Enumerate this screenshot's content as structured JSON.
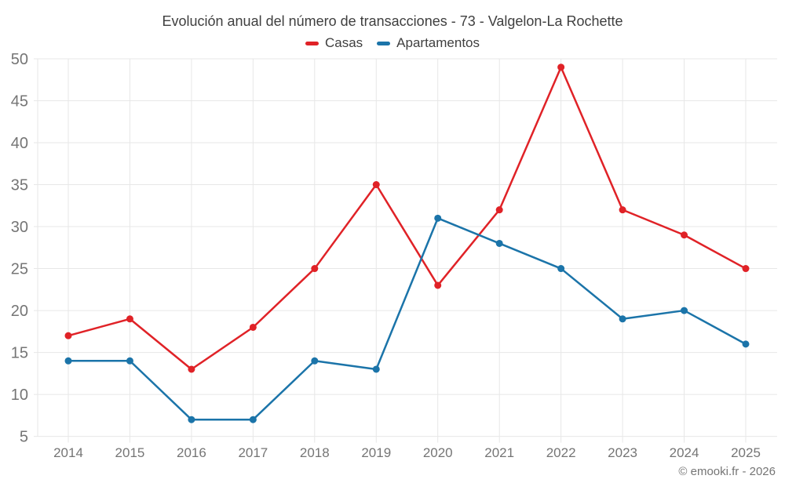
{
  "chart_data": {
    "type": "line",
    "title": "Evolución anual del número de transacciones - 73 - Valgelon-La Rochette",
    "categories": [
      "2014",
      "2015",
      "2016",
      "2017",
      "2018",
      "2019",
      "2020",
      "2021",
      "2022",
      "2023",
      "2024",
      "2025"
    ],
    "series": [
      {
        "name": "Casas",
        "color": "#e02227",
        "values": [
          17,
          19,
          13,
          18,
          25,
          35,
          23,
          32,
          49,
          32,
          29,
          25
        ]
      },
      {
        "name": "Apartamentos",
        "color": "#1b74a9",
        "values": [
          14,
          14,
          7,
          7,
          14,
          13,
          31,
          28,
          25,
          19,
          20,
          16
        ]
      }
    ],
    "xlabel": "",
    "ylabel": "",
    "ylim": [
      5,
      50
    ],
    "ytick_step": 5,
    "grid": true,
    "legend_position": "top"
  },
  "footer": {
    "credit": "© emooki.fr - 2026"
  },
  "style": {
    "grid_color": "#e7e7e7",
    "axis_label_color": "#757575",
    "title_color": "#3f3f3f"
  }
}
